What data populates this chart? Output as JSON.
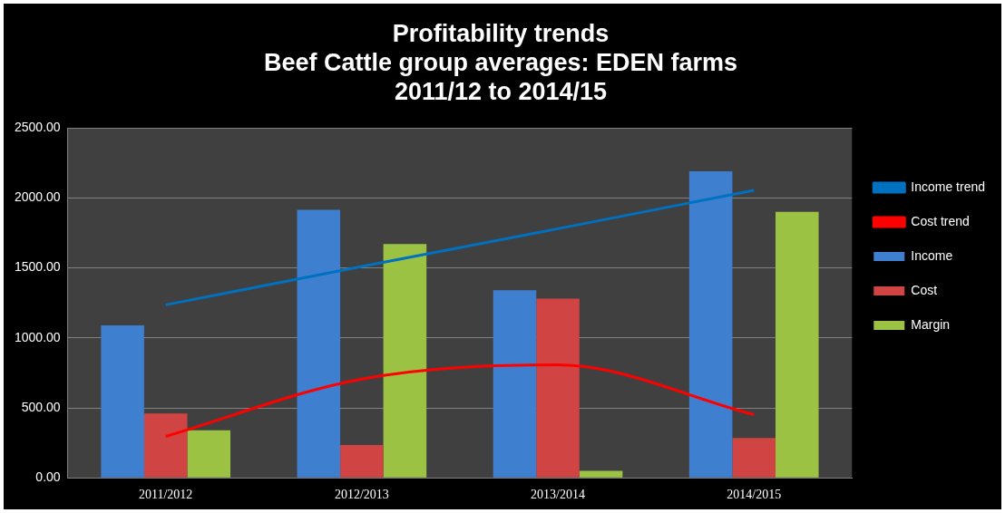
{
  "chart_data": {
    "type": "bar",
    "title": "Profitability trends\nBeef Cattle group averages: EDEN farms\n2011/12 to 2014/15",
    "categories": [
      "2011/2012",
      "2012/2013",
      "2013/2014",
      "2014/2015"
    ],
    "series": [
      {
        "name": "Income",
        "color": "#3f7fd0",
        "values": [
          1090,
          1915,
          1340,
          2190
        ]
      },
      {
        "name": "Cost",
        "color": "#d04444",
        "values": [
          460,
          235,
          1280,
          285
        ]
      },
      {
        "name": "Margin",
        "color": "#9bc243",
        "values": [
          340,
          1670,
          50,
          1900
        ]
      },
      {
        "name": "Income trend",
        "type": "line",
        "color": "#0070c0",
        "values": [
          1236,
          1510,
          1780,
          2055
        ]
      },
      {
        "name": "Cost trend",
        "type": "line",
        "color": "#ff0000",
        "values": [
          296,
          706,
          807,
          452
        ]
      }
    ],
    "ylim": [
      0,
      2500
    ],
    "yticks": [
      {
        "value": 0,
        "label": "0.00"
      },
      {
        "value": 500,
        "label": "500.00"
      },
      {
        "value": 1000,
        "label": "1000.00"
      },
      {
        "value": 1500,
        "label": "1500.00"
      },
      {
        "value": 2000,
        "label": "2000.00"
      },
      {
        "value": 2500,
        "label": "2500.00"
      }
    ],
    "grid": "y",
    "legend": "right",
    "marker": "none"
  }
}
